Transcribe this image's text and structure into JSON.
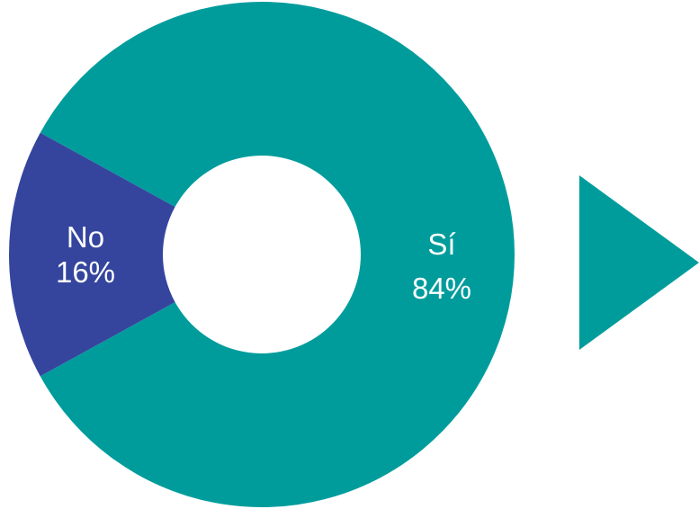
{
  "chart_data": {
    "type": "pie",
    "style": "donut",
    "title": "",
    "slices": [
      {
        "label": "Sí",
        "value": 84,
        "value_label": "84%",
        "color": "#009C9C"
      },
      {
        "label": "No",
        "value": 16,
        "value_label": "16%",
        "color": "#35459E"
      }
    ]
  },
  "decoration": {
    "arrow_icon_color": "#009C9C"
  }
}
